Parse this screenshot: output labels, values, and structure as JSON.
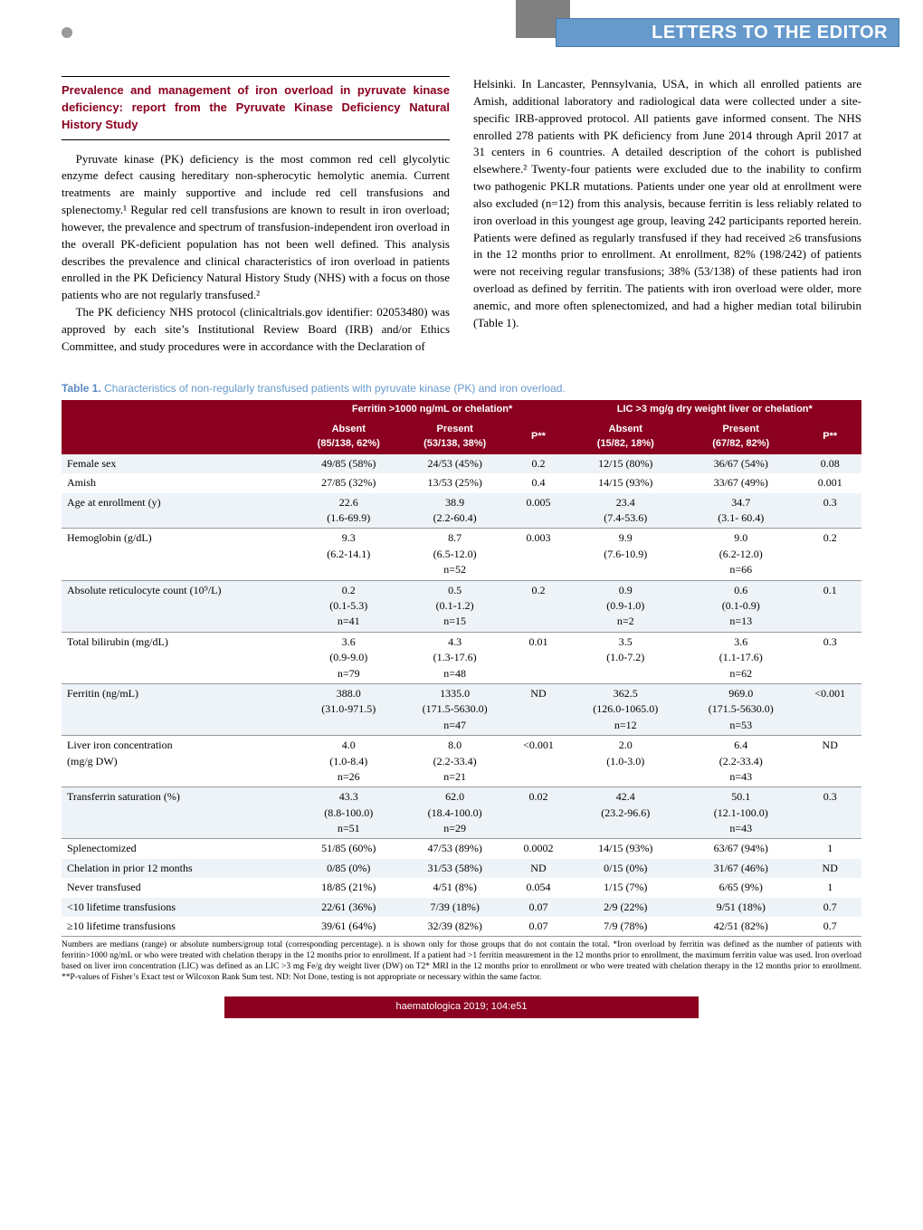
{
  "header": {
    "section_title": "LETTERS TO THE EDITOR"
  },
  "article": {
    "title": "Prevalence and management of iron overload in pyruvate kinase deficiency: report from the Pyruvate Kinase Deficiency Natural History Study",
    "left_para1": "Pyruvate kinase (PK) deficiency is the most common red cell glycolytic enzyme defect causing hereditary non-spherocytic hemolytic anemia. Current treatments are mainly supportive and include red cell transfusions and splenectomy.¹ Regular red cell transfusions are known to result in iron overload; however, the prevalence and spectrum of transfusion-independent iron overload in the overall PK-deficient population has not been well defined. This analysis describes the prevalence and clinical characteristics of iron overload in patients enrolled in the PK Deficiency Natural History Study (NHS) with a focus on those patients who are not regularly transfused.²",
    "left_para2": "The PK deficiency NHS protocol (clinicaltrials.gov identifier: 02053480) was approved by each site’s Institutional Review Board (IRB) and/or Ethics Committee, and study procedures were in accordance with the Declaration of",
    "right_para1": "Helsinki. In Lancaster, Pennsylvania, USA, in which all enrolled patients are Amish, additional laboratory and radiological data were collected under a site-specific IRB-approved protocol. All patients gave informed consent. The NHS enrolled 278 patients with PK deficiency from June 2014 through April 2017 at 31 centers in 6 countries. A detailed description of the cohort is published elsewhere.² Twenty-four patients were excluded due to the inability to confirm two pathogenic PKLR mutations. Patients under one year old at enrollment were also excluded (n=12) from this analysis, because ferritin is less reliably related to iron overload in this youngest age group, leaving 242 participants reported herein. Patients were defined as regularly transfused if they had received ≥6 transfusions in the 12 months prior to enrollment. At enrollment, 82% (198/242) of patients were not receiving regular transfusions; 38% (53/138) of these patients had iron overload as defined by ferritin. The patients with iron overload were older, more anemic, and more often splenectomized, and had a higher median total bilirubin (Table 1)."
  },
  "table": {
    "caption_label": "Table 1.",
    "caption_text": "Characteristics of non-regularly transfused patients with pyruvate kinase (PK) and iron overload.",
    "span_headers": [
      "Ferritin >1000 ng/mL or chelation*",
      "LIC >3 mg/g dry weight liver or chelation*"
    ],
    "col_headers": [
      "",
      "Absent\n(85/138, 62%)",
      "Present\n(53/138, 38%)",
      "P**",
      "Absent\n(15/82, 18%)",
      "Present\n(67/82, 82%)",
      "P**"
    ],
    "rows": [
      {
        "shade": true,
        "label": "Female sex",
        "cells": [
          "49/85 (58%)",
          "24/53 (45%)",
          "0.2",
          "12/15 (80%)",
          "36/67 (54%)",
          "0.08"
        ],
        "border": false
      },
      {
        "shade": false,
        "label": "Amish",
        "cells": [
          "27/85 (32%)",
          "13/53 (25%)",
          "0.4",
          "14/15 (93%)",
          "33/67 (49%)",
          "0.001"
        ],
        "border": false
      },
      {
        "shade": true,
        "label": "Age at enrollment (y)",
        "cells": [
          "22.6\n(1.6-69.9)",
          "38.9\n(2.2-60.4)",
          "0.005",
          "23.4\n(7.4-53.6)",
          "34.7\n(3.1- 60.4)",
          "0.3"
        ],
        "border": true
      },
      {
        "shade": false,
        "label": "Hemoglobin (g/dL)",
        "cells": [
          "9.3\n(6.2-14.1)",
          "8.7\n(6.5-12.0)\nn=52",
          "0.003",
          "9.9\n(7.6-10.9)",
          "9.0\n(6.2-12.0)\nn=66",
          "0.2"
        ],
        "border": true
      },
      {
        "shade": true,
        "label": "Absolute reticulocyte count (10⁹/L)",
        "cells": [
          "0.2\n(0.1-5.3)\nn=41",
          "0.5\n(0.1-1.2)\nn=15",
          "0.2",
          "0.9\n(0.9-1.0)\nn=2",
          "0.6\n(0.1-0.9)\nn=13",
          "0.1"
        ],
        "border": true
      },
      {
        "shade": false,
        "label": "Total bilirubin (mg/dL)",
        "cells": [
          "3.6\n(0.9-9.0)\nn=79",
          "4.3\n(1.3-17.6)\nn=48",
          "0.01",
          "3.5\n(1.0-7.2)",
          "3.6\n(1.1-17.6)\nn=62",
          "0.3"
        ],
        "border": true
      },
      {
        "shade": true,
        "label": "Ferritin (ng/mL)",
        "cells": [
          "388.0\n(31.0-971.5)",
          "1335.0\n(171.5-5630.0)\nn=47",
          "ND",
          "362.5\n(126.0-1065.0)\nn=12",
          "969.0\n(171.5-5630.0)\nn=53",
          "<0.001"
        ],
        "border": true
      },
      {
        "shade": false,
        "label": "Liver iron concentration\n(mg/g DW)",
        "cells": [
          "4.0\n(1.0-8.4)\nn=26",
          "8.0\n(2.2-33.4)\nn=21",
          "<0.001",
          "2.0\n(1.0-3.0)",
          "6.4\n(2.2-33.4)\nn=43",
          "ND"
        ],
        "border": true
      },
      {
        "shade": true,
        "label": "Transferrin saturation (%)",
        "cells": [
          "43.3\n(8.8-100.0)\nn=51",
          "62.0\n(18.4-100.0)\nn=29",
          "0.02",
          "42.4\n(23.2-96.6)",
          "50.1\n(12.1-100.0)\nn=43",
          "0.3"
        ],
        "border": true
      },
      {
        "shade": false,
        "label": "Splenectomized",
        "cells": [
          "51/85 (60%)",
          "47/53 (89%)",
          "0.0002",
          "14/15 (93%)",
          "63/67 (94%)",
          "1"
        ],
        "border": false
      },
      {
        "shade": true,
        "label": "Chelation in prior 12 months",
        "cells": [
          "0/85 (0%)",
          "31/53 (58%)",
          "ND",
          "0/15 (0%)",
          "31/67 (46%)",
          "ND"
        ],
        "border": false
      },
      {
        "shade": false,
        "label": "Never transfused",
        "cells": [
          "18/85 (21%)",
          "4/51 (8%)",
          "0.054",
          "1/15 (7%)",
          "6/65 (9%)",
          "1"
        ],
        "border": false
      },
      {
        "shade": true,
        "label": "<10 lifetime transfusions",
        "cells": [
          "22/61 (36%)",
          "7/39 (18%)",
          "0.07",
          "2/9 (22%)",
          "9/51 (18%)",
          "0.7"
        ],
        "border": false
      },
      {
        "shade": false,
        "label": "≥10 lifetime transfusions",
        "cells": [
          "39/61 (64%)",
          "32/39 (82%)",
          "0.07",
          "7/9 (78%)",
          "42/51 (82%)",
          "0.7"
        ],
        "border": true
      }
    ],
    "footnote": "Numbers are medians (range) or absolute numbers/group total (corresponding percentage). n is shown only for those groups that do not contain the total. *Iron overload by ferritin was defined as the number of patients with ferritin>1000 ng/mL or who were treated with chelation therapy in the 12 months prior to enrollment. If a patient had >1 ferritin measurement in the 12 months prior to enrollment, the maximum ferritin value was used. Iron overload based on liver iron concentration (LIC) was defined as an LIC >3 mg Fe/g dry weight liver (DW) on T2* MRI in the 12 months prior to enrollment or who were treated with chelation therapy in the 12 months prior to enrollment. **P-values of Fisher’s Exact test or Wilcoxon Rank Sum test. ND: Not Done, testing is not appropriate or necessary within the same factor."
  },
  "footer": {
    "journal_line": "haematologica 2019; 104:e51"
  },
  "colors": {
    "blue_header": "#6699cc",
    "maroon": "#8b0020",
    "shade_row": "#eef3f8"
  }
}
